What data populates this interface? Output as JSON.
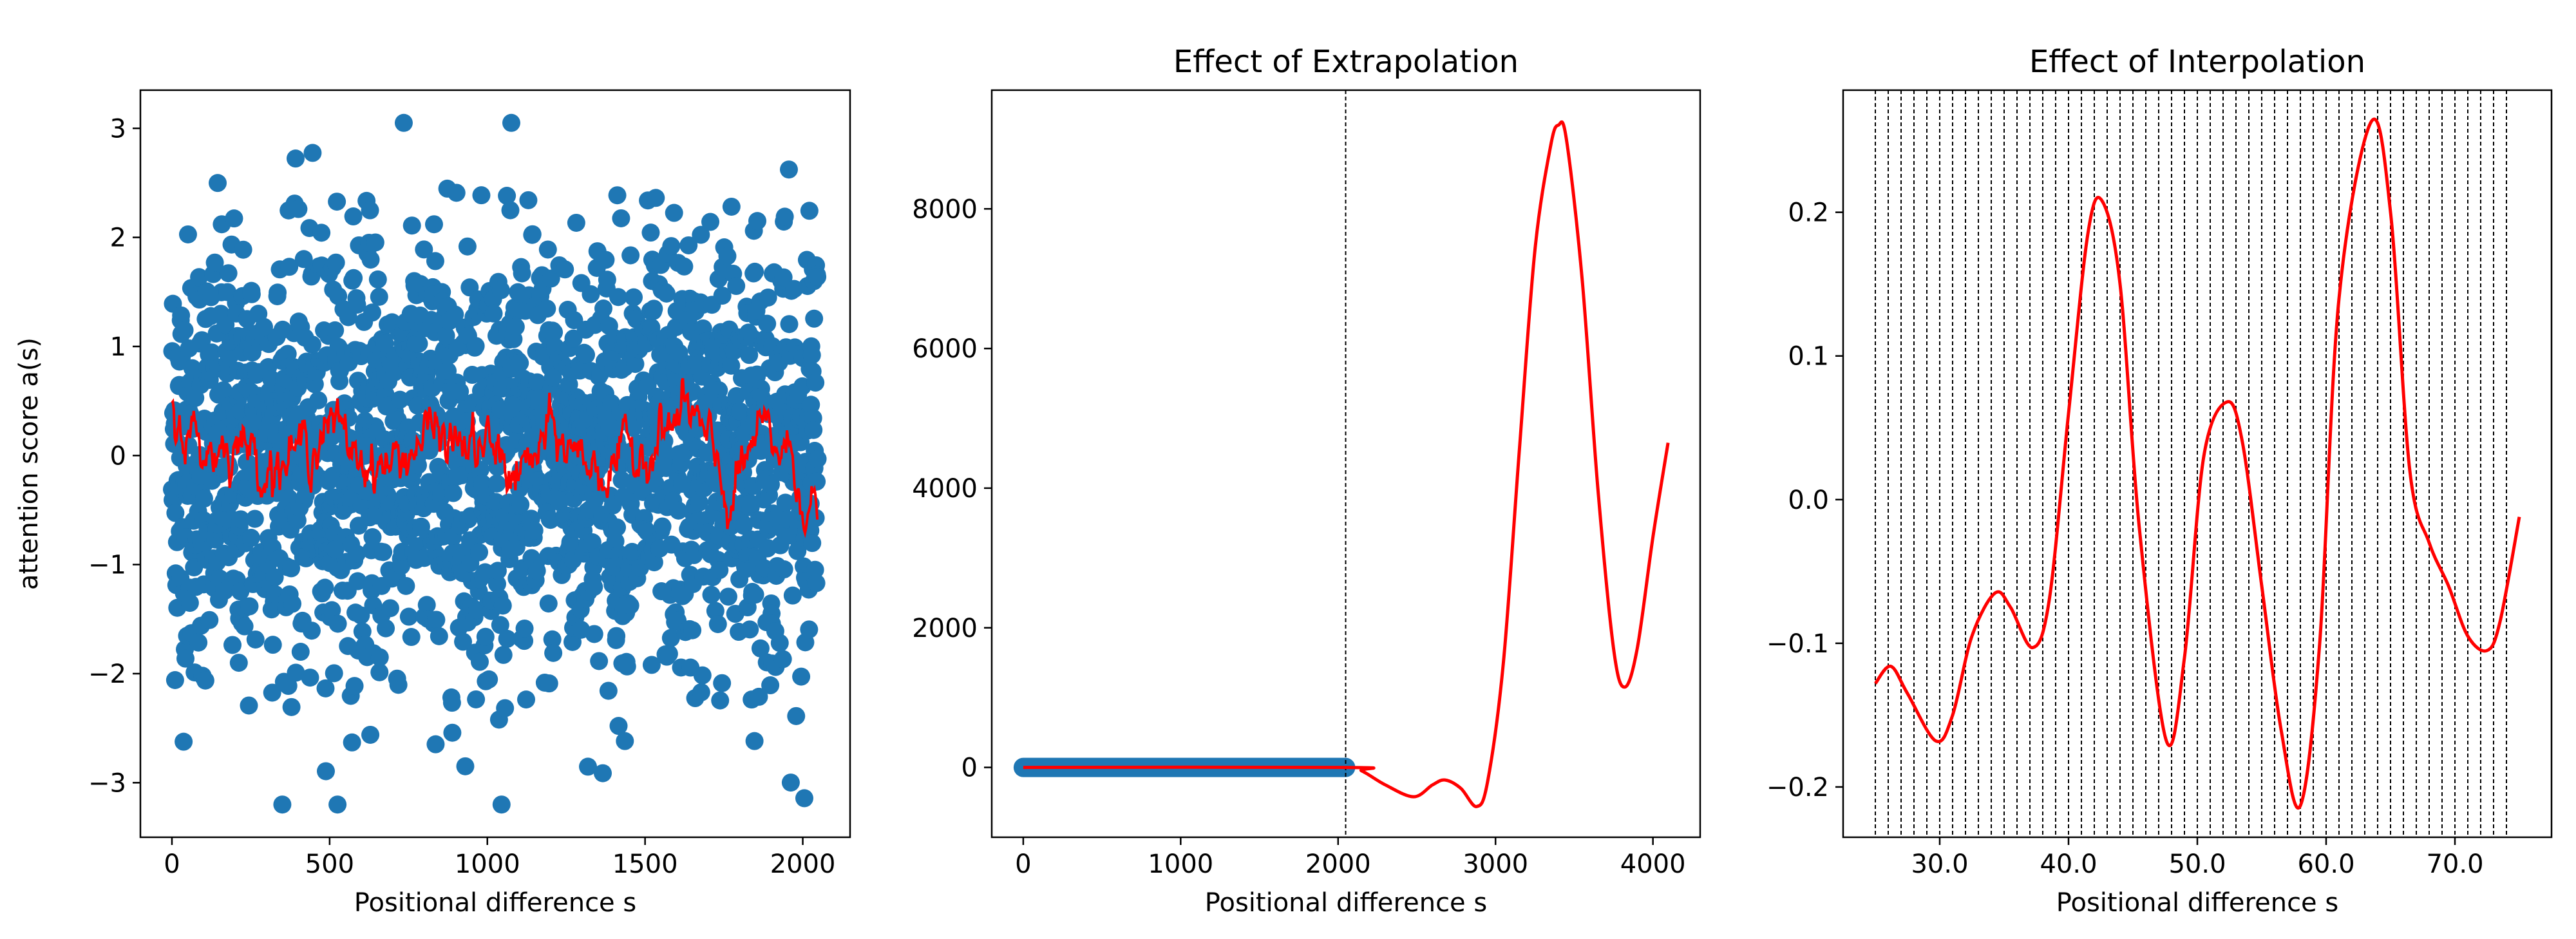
{
  "chart_data": [
    {
      "type": "scatter",
      "title": "",
      "xlabel": "Positional difference s",
      "ylabel": "attention score a(s)",
      "xlim": [
        -100,
        2150
      ],
      "ylim": [
        -3.5,
        3.35
      ],
      "xticks": [
        0,
        500,
        1000,
        1500,
        2000
      ],
      "yticks": [
        -3,
        -2,
        -1,
        0,
        1,
        2,
        3
      ],
      "grid": false,
      "series": [
        {
          "kind": "scatter",
          "color": "#1f77b4",
          "count": 2048,
          "x_range": [
            0,
            2047
          ],
          "distribution": "standard normal noise, sd 1"
        },
        {
          "kind": "line",
          "color": "#ff0000",
          "x_range": [
            0,
            2047
          ],
          "description": "noisy smooth fit around 0, amplitude ~0.5",
          "samples_x": [
            0,
            100,
            200,
            300,
            400,
            480,
            600,
            700,
            800,
            900,
            1000,
            1100,
            1200,
            1300,
            1400,
            1500,
            1600,
            1650,
            1700,
            1770,
            1850,
            1950,
            2047
          ],
          "samples_y": [
            0.4,
            0.05,
            0.15,
            -0.05,
            0.0,
            0.3,
            0.0,
            -0.1,
            0.2,
            0.1,
            0.05,
            -0.2,
            0.15,
            0.0,
            -0.15,
            0.1,
            0.3,
            0.4,
            0.0,
            -0.45,
            0.15,
            0.05,
            -0.6
          ]
        }
      ]
    },
    {
      "type": "line",
      "title": "Effect of Extrapolation",
      "xlabel": "Positional difference s",
      "ylabel": "",
      "xlim": [
        -200,
        4300
      ],
      "ylim": [
        -1000,
        9700
      ],
      "xticks": [
        0,
        1000,
        2000,
        3000,
        4000
      ],
      "yticks": [
        0,
        2000,
        4000,
        6000,
        8000
      ],
      "grid": false,
      "vline_x": 2048,
      "series": [
        {
          "kind": "scatter-band",
          "color": "#1f77b4",
          "x_range": [
            0,
            2048
          ],
          "y": 0
        },
        {
          "kind": "line",
          "color": "#ff0000",
          "x": [
            0,
            2048,
            2150,
            2300,
            2480,
            2600,
            2680,
            2780,
            2880,
            2950,
            3050,
            3150,
            3250,
            3350,
            3400,
            3450,
            3550,
            3650,
            3750,
            3820,
            3900,
            4000,
            4096
          ],
          "y": [
            0,
            0,
            -50,
            -250,
            -420,
            -250,
            -180,
            -300,
            -560,
            -200,
            1500,
            4500,
            7400,
            8900,
            9200,
            9000,
            7000,
            4000,
            1700,
            1150,
            1700,
            3300,
            4650
          ]
        }
      ]
    },
    {
      "type": "line",
      "title": "Effect of Interpolation",
      "xlabel": "Positional difference s",
      "ylabel": "",
      "xlim": [
        22.5,
        77.5
      ],
      "ylim": [
        -0.235,
        0.285
      ],
      "xticks": [
        30,
        40,
        50,
        60,
        70
      ],
      "yticks": [
        -0.2,
        -0.1,
        0.0,
        0.1,
        0.2
      ],
      "grid": false,
      "vlines_x": [
        25,
        26,
        27,
        28,
        29,
        30,
        31,
        32,
        33,
        34,
        35,
        36,
        37,
        38,
        39,
        40,
        41,
        42,
        43,
        44,
        45,
        46,
        47,
        48,
        49,
        50,
        51,
        52,
        53,
        54,
        55,
        56,
        57,
        58,
        59,
        60,
        61,
        62,
        63,
        64,
        65,
        66,
        67,
        68,
        69,
        70,
        71,
        72,
        73,
        74
      ],
      "series": [
        {
          "kind": "line",
          "color": "#ff0000",
          "x": [
            25,
            26.2,
            27.5,
            29.7,
            31,
            32.5,
            34.3,
            35.5,
            37.2,
            38.5,
            40,
            41.5,
            42.6,
            44,
            45.5,
            47.6,
            49,
            50.5,
            52.3,
            53.5,
            55,
            56.5,
            58,
            59.5,
            61,
            63.5,
            65,
            66.5,
            68,
            69.5,
            71,
            72.5,
            73.5,
            75
          ],
          "y": [
            -0.128,
            -0.116,
            -0.135,
            -0.168,
            -0.15,
            -0.095,
            -0.065,
            -0.075,
            -0.103,
            -0.07,
            0.06,
            0.185,
            0.208,
            0.15,
            -0.02,
            -0.168,
            -0.11,
            0.03,
            0.068,
            0.04,
            -0.06,
            -0.16,
            -0.213,
            -0.1,
            0.14,
            0.263,
            0.2,
            0.02,
            -0.03,
            -0.06,
            -0.095,
            -0.105,
            -0.085,
            -0.012
          ]
        }
      ]
    }
  ]
}
